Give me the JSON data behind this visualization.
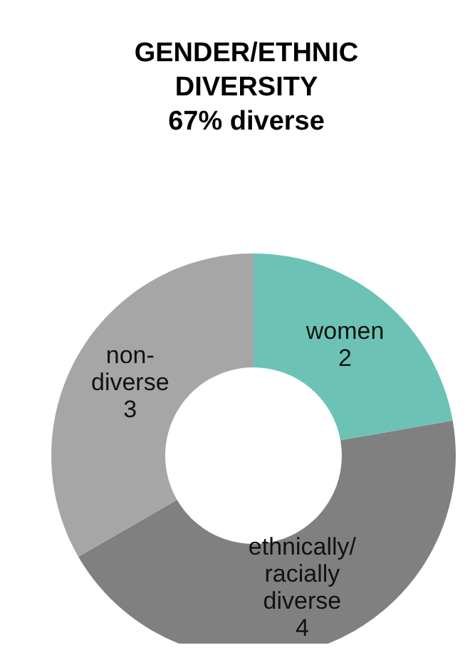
{
  "chart_data": {
    "type": "donut",
    "title": "GENDER/ETHNIC DIVERSITY",
    "subtitle": "67% diverse",
    "categories": [
      "women",
      "ethnically/racially diverse",
      "non-diverse"
    ],
    "values": [
      2,
      4,
      3
    ],
    "colors": [
      "#6cc3b5",
      "#808080",
      "#a6a6a6"
    ],
    "data_labels": true,
    "legend": false
  }
}
